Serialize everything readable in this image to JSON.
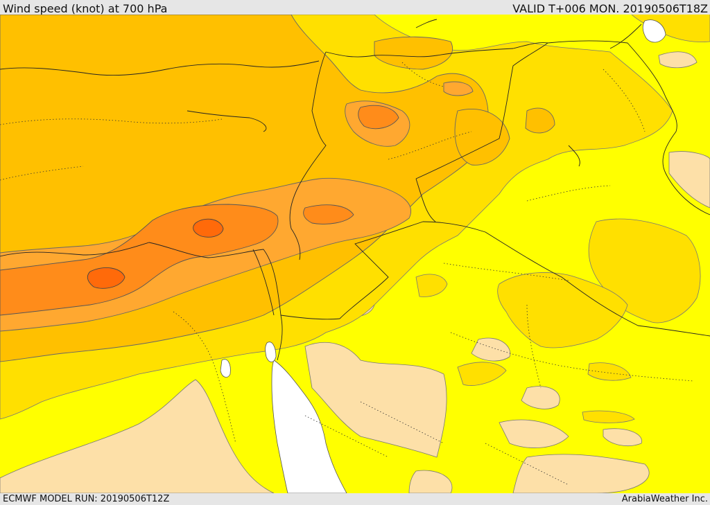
{
  "header": {
    "title": "Wind speed (knot) at 700 hPa",
    "valid": "VALID T+006 MON. 20190506T18Z"
  },
  "footer": {
    "run": "ECMWF MODEL RUN: 20190506T12Z",
    "credit": "ArabiaWeather Inc."
  },
  "colors": {
    "sea_white": "#ffffff",
    "light_tan": "#fde0a8",
    "yellow": "#ffff00",
    "yellow_orange": "#ffe000",
    "gold": "#ffc000",
    "orange_light": "#ffa830",
    "orange": "#ff8c1a",
    "orange_dark": "#ff6a0a"
  }
}
